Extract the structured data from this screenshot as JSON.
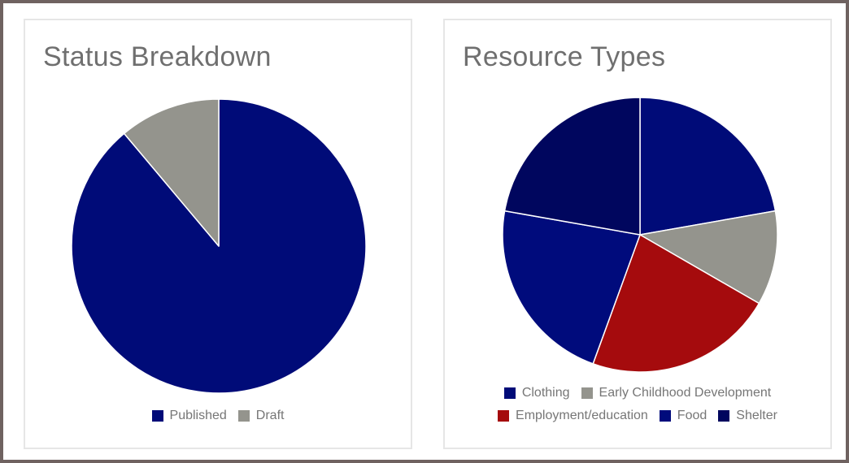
{
  "charts": {
    "status": {
      "title": "Status Breakdown",
      "legend": [
        {
          "label": "Published",
          "color": "#000b78"
        },
        {
          "label": "Draft",
          "color": "#94948d"
        }
      ]
    },
    "resources": {
      "title": "Resource Types",
      "legend_rows": [
        [
          {
            "label": "Clothing",
            "color": "#000b78"
          },
          {
            "label": "Early Childhood Development",
            "color": "#94948d"
          }
        ],
        [
          {
            "label": "Employment/education",
            "color": "#a50b0d"
          },
          {
            "label": "Food",
            "color": "#000b7c"
          },
          {
            "label": "Shelter",
            "color": "#00065e"
          }
        ]
      ]
    }
  },
  "chart_data": [
    {
      "type": "pie",
      "title": "Status Breakdown",
      "slices": [
        {
          "label": "Published",
          "value": 8,
          "color": "#000b78"
        },
        {
          "label": "Draft",
          "value": 1,
          "color": "#94948d"
        }
      ],
      "legend": "bottom"
    },
    {
      "type": "pie",
      "title": "Resource Types",
      "slices": [
        {
          "label": "Clothing",
          "value": 2,
          "color": "#000b78"
        },
        {
          "label": "Early Childhood Development",
          "value": 1,
          "color": "#94948d"
        },
        {
          "label": "Employment/education",
          "value": 2,
          "color": "#a50b0d"
        },
        {
          "label": "Food",
          "value": 2,
          "color": "#000b7c"
        },
        {
          "label": "Shelter",
          "value": 2,
          "color": "#00065e"
        }
      ],
      "legend": "bottom"
    }
  ]
}
